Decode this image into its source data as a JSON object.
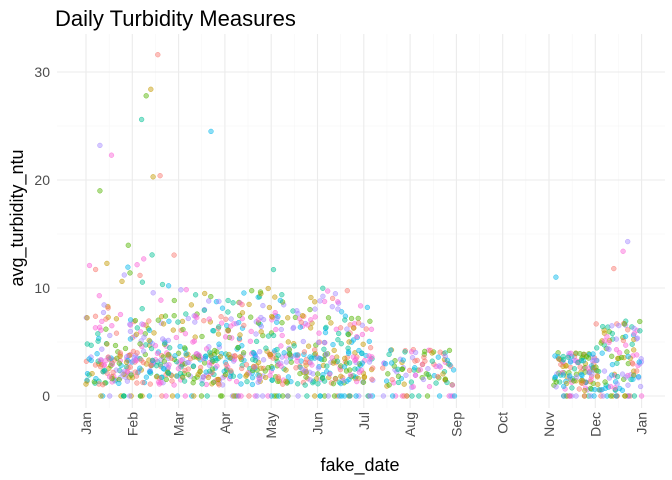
{
  "chart_data": {
    "type": "scatter",
    "title": "Daily Turbidity Measures",
    "xlabel": "fake_date",
    "ylabel": "avg_turbidity_ntu",
    "x_domain": [
      "Jan",
      "Jan (next year)"
    ],
    "y_range": [
      0,
      32
    ],
    "y_ticks": [
      0,
      10,
      20,
      30
    ],
    "x_ticks": [
      "Jan",
      "Feb",
      "Mar",
      "Apr",
      "May",
      "Jun",
      "Jul",
      "Aug",
      "Sep",
      "Oct",
      "Nov",
      "Dec",
      "Jan"
    ],
    "grid": true,
    "legend": "none",
    "point_opacity": 0.45,
    "series_colors": [
      "#F8766D",
      "#C49A00",
      "#53B400",
      "#00C094",
      "#00B6EB",
      "#A58AFF",
      "#FB61D7"
    ],
    "data_gap": [
      "Sep",
      "Nov"
    ],
    "outliers": [
      {
        "month": 1.55,
        "value": 31.6
      },
      {
        "month": 1.4,
        "value": 28.4
      },
      {
        "month": 1.3,
        "value": 27.8
      },
      {
        "month": 1.2,
        "value": 25.6
      },
      {
        "month": 2.7,
        "value": 24.5
      },
      {
        "month": 0.3,
        "value": 23.2
      },
      {
        "month": 0.55,
        "value": 22.3
      },
      {
        "month": 1.6,
        "value": 20.4
      },
      {
        "month": 1.45,
        "value": 20.3
      },
      {
        "month": 0.3,
        "value": 19.0
      },
      {
        "month": 4.05,
        "value": 11.7
      },
      {
        "month": 10.15,
        "value": 11.0
      },
      {
        "month": 11.7,
        "value": 14.3
      },
      {
        "month": 11.6,
        "value": 13.4
      },
      {
        "month": 11.4,
        "value": 11.8
      }
    ]
  }
}
